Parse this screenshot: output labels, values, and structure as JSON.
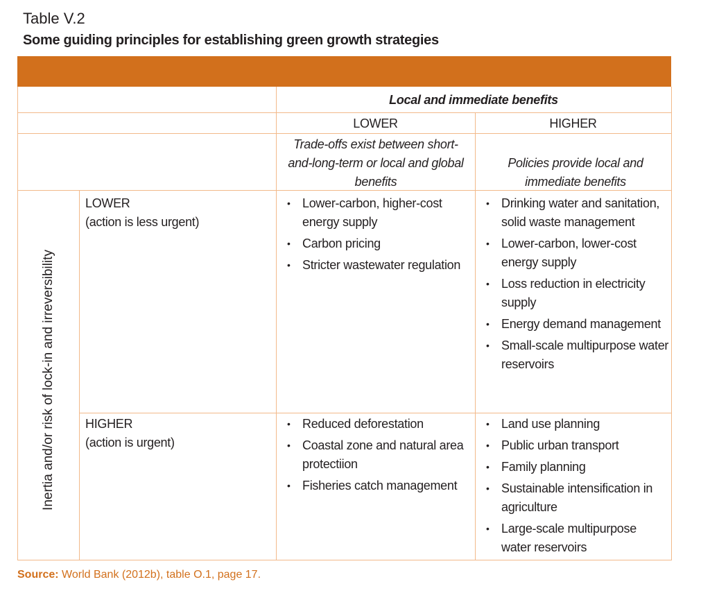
{
  "table_label": "Table V.2",
  "title": "Some guiding principles for establishing green growth strategies",
  "header": {
    "benefits": "Local and immediate benefits",
    "lower": "LOWER",
    "higher": "HIGHER",
    "lower_desc": "Trade-offs exist between short-and-long-term or local and global benefits",
    "higher_desc": "Policies provide local and immediate benefits"
  },
  "row_axis": "Inertia and/or risk of lock-in and irreversibility",
  "rows": [
    {
      "level": "LOWER",
      "note": "(action is less urgent)",
      "lower": [
        "Lower-carbon, higher-cost energy supply",
        "Carbon pricing",
        "Stricter wastewater regulation"
      ],
      "higher": [
        "Drinking water and sanitation, solid waste management",
        "Lower-carbon, lower-cost energy supply",
        "Loss reduction in electricity supply",
        "Energy demand management",
        "Small-scale multipurpose water reservoirs"
      ]
    },
    {
      "level": "HIGHER",
      "note": "(action is urgent)",
      "lower": [
        "Reduced deforestation",
        "Coastal zone and natural area protectiion",
        "Fisheries catch management"
      ],
      "higher": [
        "Land use planning",
        "Public urban transport",
        "Family planning",
        "Sustainable intensification in agriculture",
        "Large-scale multipurpose water reservoirs"
      ]
    }
  ],
  "source": {
    "label": "Source:",
    "text": "World Bank (2012b), table O.1, page 17."
  },
  "colors": {
    "accent": "#d2701c",
    "grid": "#f2b98a"
  }
}
